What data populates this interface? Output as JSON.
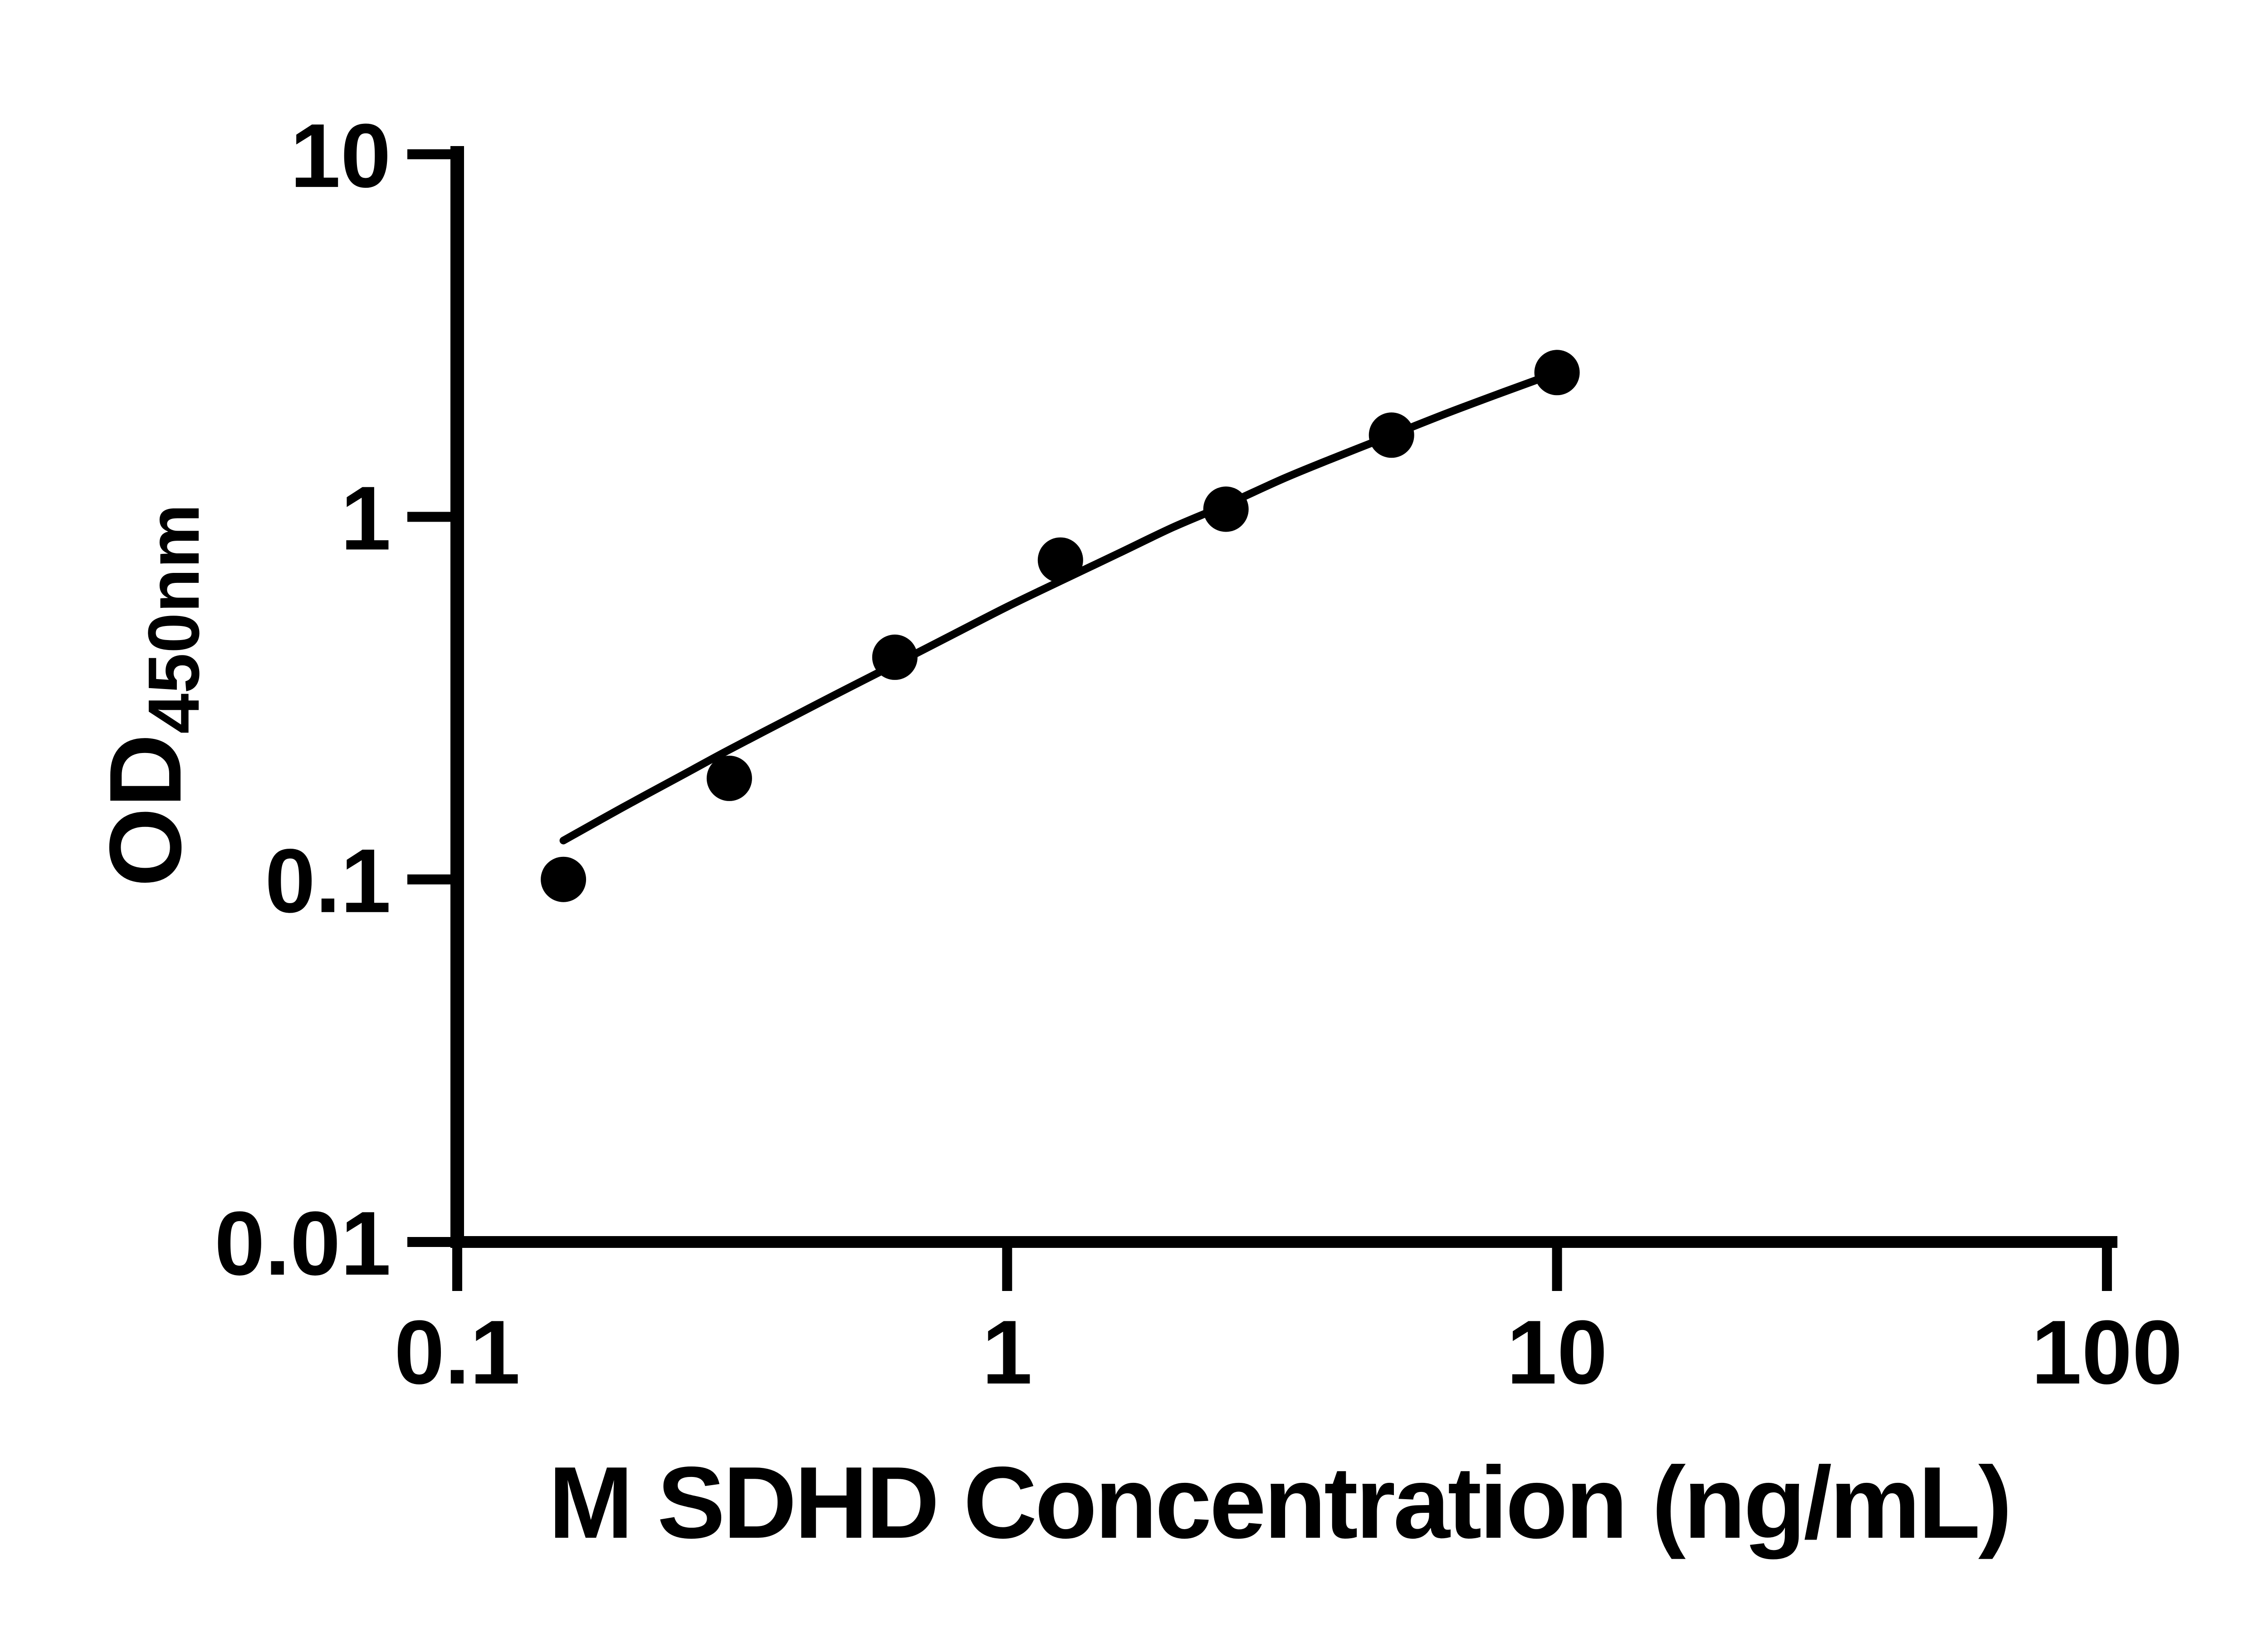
{
  "chart_data": {
    "type": "scatter",
    "title": "",
    "xlabel": "M SDHD Concentration (ng/mL)",
    "ylabel_main": "OD",
    "ylabel_sub": "450nm",
    "x_scale": "log",
    "y_scale": "log",
    "xlim": [
      0.1,
      100
    ],
    "ylim": [
      0.01,
      10
    ],
    "grid": false,
    "legend": false,
    "x_ticks": {
      "values": [
        0.1,
        1,
        10,
        100
      ],
      "labels": [
        "0.1",
        "1",
        "10",
        "100"
      ]
    },
    "y_ticks": {
      "values": [
        10,
        1,
        0.1,
        0.01
      ],
      "labels": [
        "10",
        "1",
        "0.1",
        "0.01"
      ]
    },
    "series": [
      {
        "name": "standard-points",
        "marker": "circle",
        "color": "#000000",
        "x": [
          0.156,
          0.3125,
          0.625,
          1.25,
          2.5,
          5,
          10
        ],
        "y": [
          0.1,
          0.19,
          0.41,
          0.76,
          1.05,
          1.68,
          2.5
        ]
      }
    ],
    "fit_curve": {
      "name": "fitted-standard-curve",
      "color": "#000000",
      "x": [
        0.156,
        0.2,
        0.26,
        0.3125,
        0.4,
        0.5,
        0.625,
        0.8,
        1.0,
        1.25,
        1.6,
        2.0,
        2.5,
        3.2,
        4.0,
        5.0,
        6.3,
        8.0,
        10
      ],
      "y": [
        0.128,
        0.158,
        0.196,
        0.228,
        0.277,
        0.33,
        0.392,
        0.475,
        0.565,
        0.665,
        0.795,
        0.935,
        1.08,
        1.28,
        1.47,
        1.68,
        1.93,
        2.21,
        2.5
      ]
    },
    "colors": {
      "foreground": "#000000",
      "background": "#ffffff"
    }
  }
}
